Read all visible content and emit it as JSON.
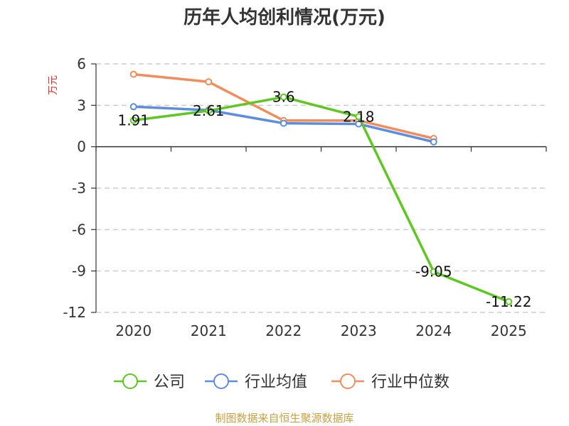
{
  "chart_data": {
    "type": "line",
    "title": "历年人均创利情况(万元)",
    "ylabel": "万元",
    "categories": [
      "2020",
      "2021",
      "2022",
      "2023",
      "2024",
      "2025"
    ],
    "ylim": [
      -12,
      6
    ],
    "yticks": [
      "6",
      "3",
      "0",
      "-3",
      "-6",
      "-9",
      "-12"
    ],
    "grid": true,
    "legend_position": "bottom",
    "series": [
      {
        "name": "公司",
        "color": "#5cc820",
        "values": [
          1.91,
          2.61,
          3.6,
          2.18,
          -9.05,
          -11.22
        ],
        "labels": [
          "1.91",
          "2.61",
          "3.6",
          "2.18",
          "-9.05",
          "-11.22"
        ]
      },
      {
        "name": "行业均值",
        "color": "#5b8ee0",
        "values": [
          2.9,
          2.65,
          1.7,
          1.65,
          0.35,
          null
        ]
      },
      {
        "name": "行业中位数",
        "color": "#f28c5a",
        "values": [
          5.25,
          4.7,
          1.9,
          1.9,
          0.6,
          null
        ]
      }
    ]
  },
  "source": "制图数据来自恒生聚源数据库"
}
